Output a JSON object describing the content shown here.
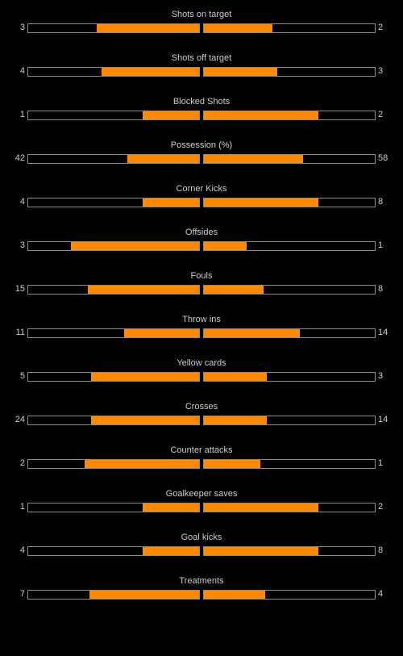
{
  "colors": {
    "bar_fill": "#ff8a00",
    "bar_border": "#8a8a8a",
    "background": "#000000",
    "text": "#cccccc"
  },
  "stats": [
    {
      "label": "Shots on target",
      "home": "3",
      "away": "2",
      "home_fill": 0.6,
      "away_fill": 0.4
    },
    {
      "label": "Shots off target",
      "home": "4",
      "away": "3",
      "home_fill": 0.57,
      "away_fill": 0.43
    },
    {
      "label": "Blocked Shots",
      "home": "1",
      "away": "2",
      "home_fill": 0.33,
      "away_fill": 0.67
    },
    {
      "label": "Possession (%)",
      "home": "42",
      "away": "58",
      "home_fill": 0.42,
      "away_fill": 0.58
    },
    {
      "label": "Corner Kicks",
      "home": "4",
      "away": "8",
      "home_fill": 0.33,
      "away_fill": 0.67
    },
    {
      "label": "Offsides",
      "home": "3",
      "away": "1",
      "home_fill": 0.75,
      "away_fill": 0.25
    },
    {
      "label": "Fouls",
      "home": "15",
      "away": "8",
      "home_fill": 0.65,
      "away_fill": 0.35
    },
    {
      "label": "Throw ins",
      "home": "11",
      "away": "14",
      "home_fill": 0.44,
      "away_fill": 0.56
    },
    {
      "label": "Yellow cards",
      "home": "5",
      "away": "3",
      "home_fill": 0.63,
      "away_fill": 0.37
    },
    {
      "label": "Crosses",
      "home": "24",
      "away": "14",
      "home_fill": 0.63,
      "away_fill": 0.37
    },
    {
      "label": "Counter attacks",
      "home": "2",
      "away": "1",
      "home_fill": 0.67,
      "away_fill": 0.33
    },
    {
      "label": "Goalkeeper saves",
      "home": "1",
      "away": "2",
      "home_fill": 0.33,
      "away_fill": 0.67
    },
    {
      "label": "Goal kicks",
      "home": "4",
      "away": "8",
      "home_fill": 0.33,
      "away_fill": 0.67
    },
    {
      "label": "Treatments",
      "home": "7",
      "away": "4",
      "home_fill": 0.64,
      "away_fill": 0.36
    }
  ]
}
